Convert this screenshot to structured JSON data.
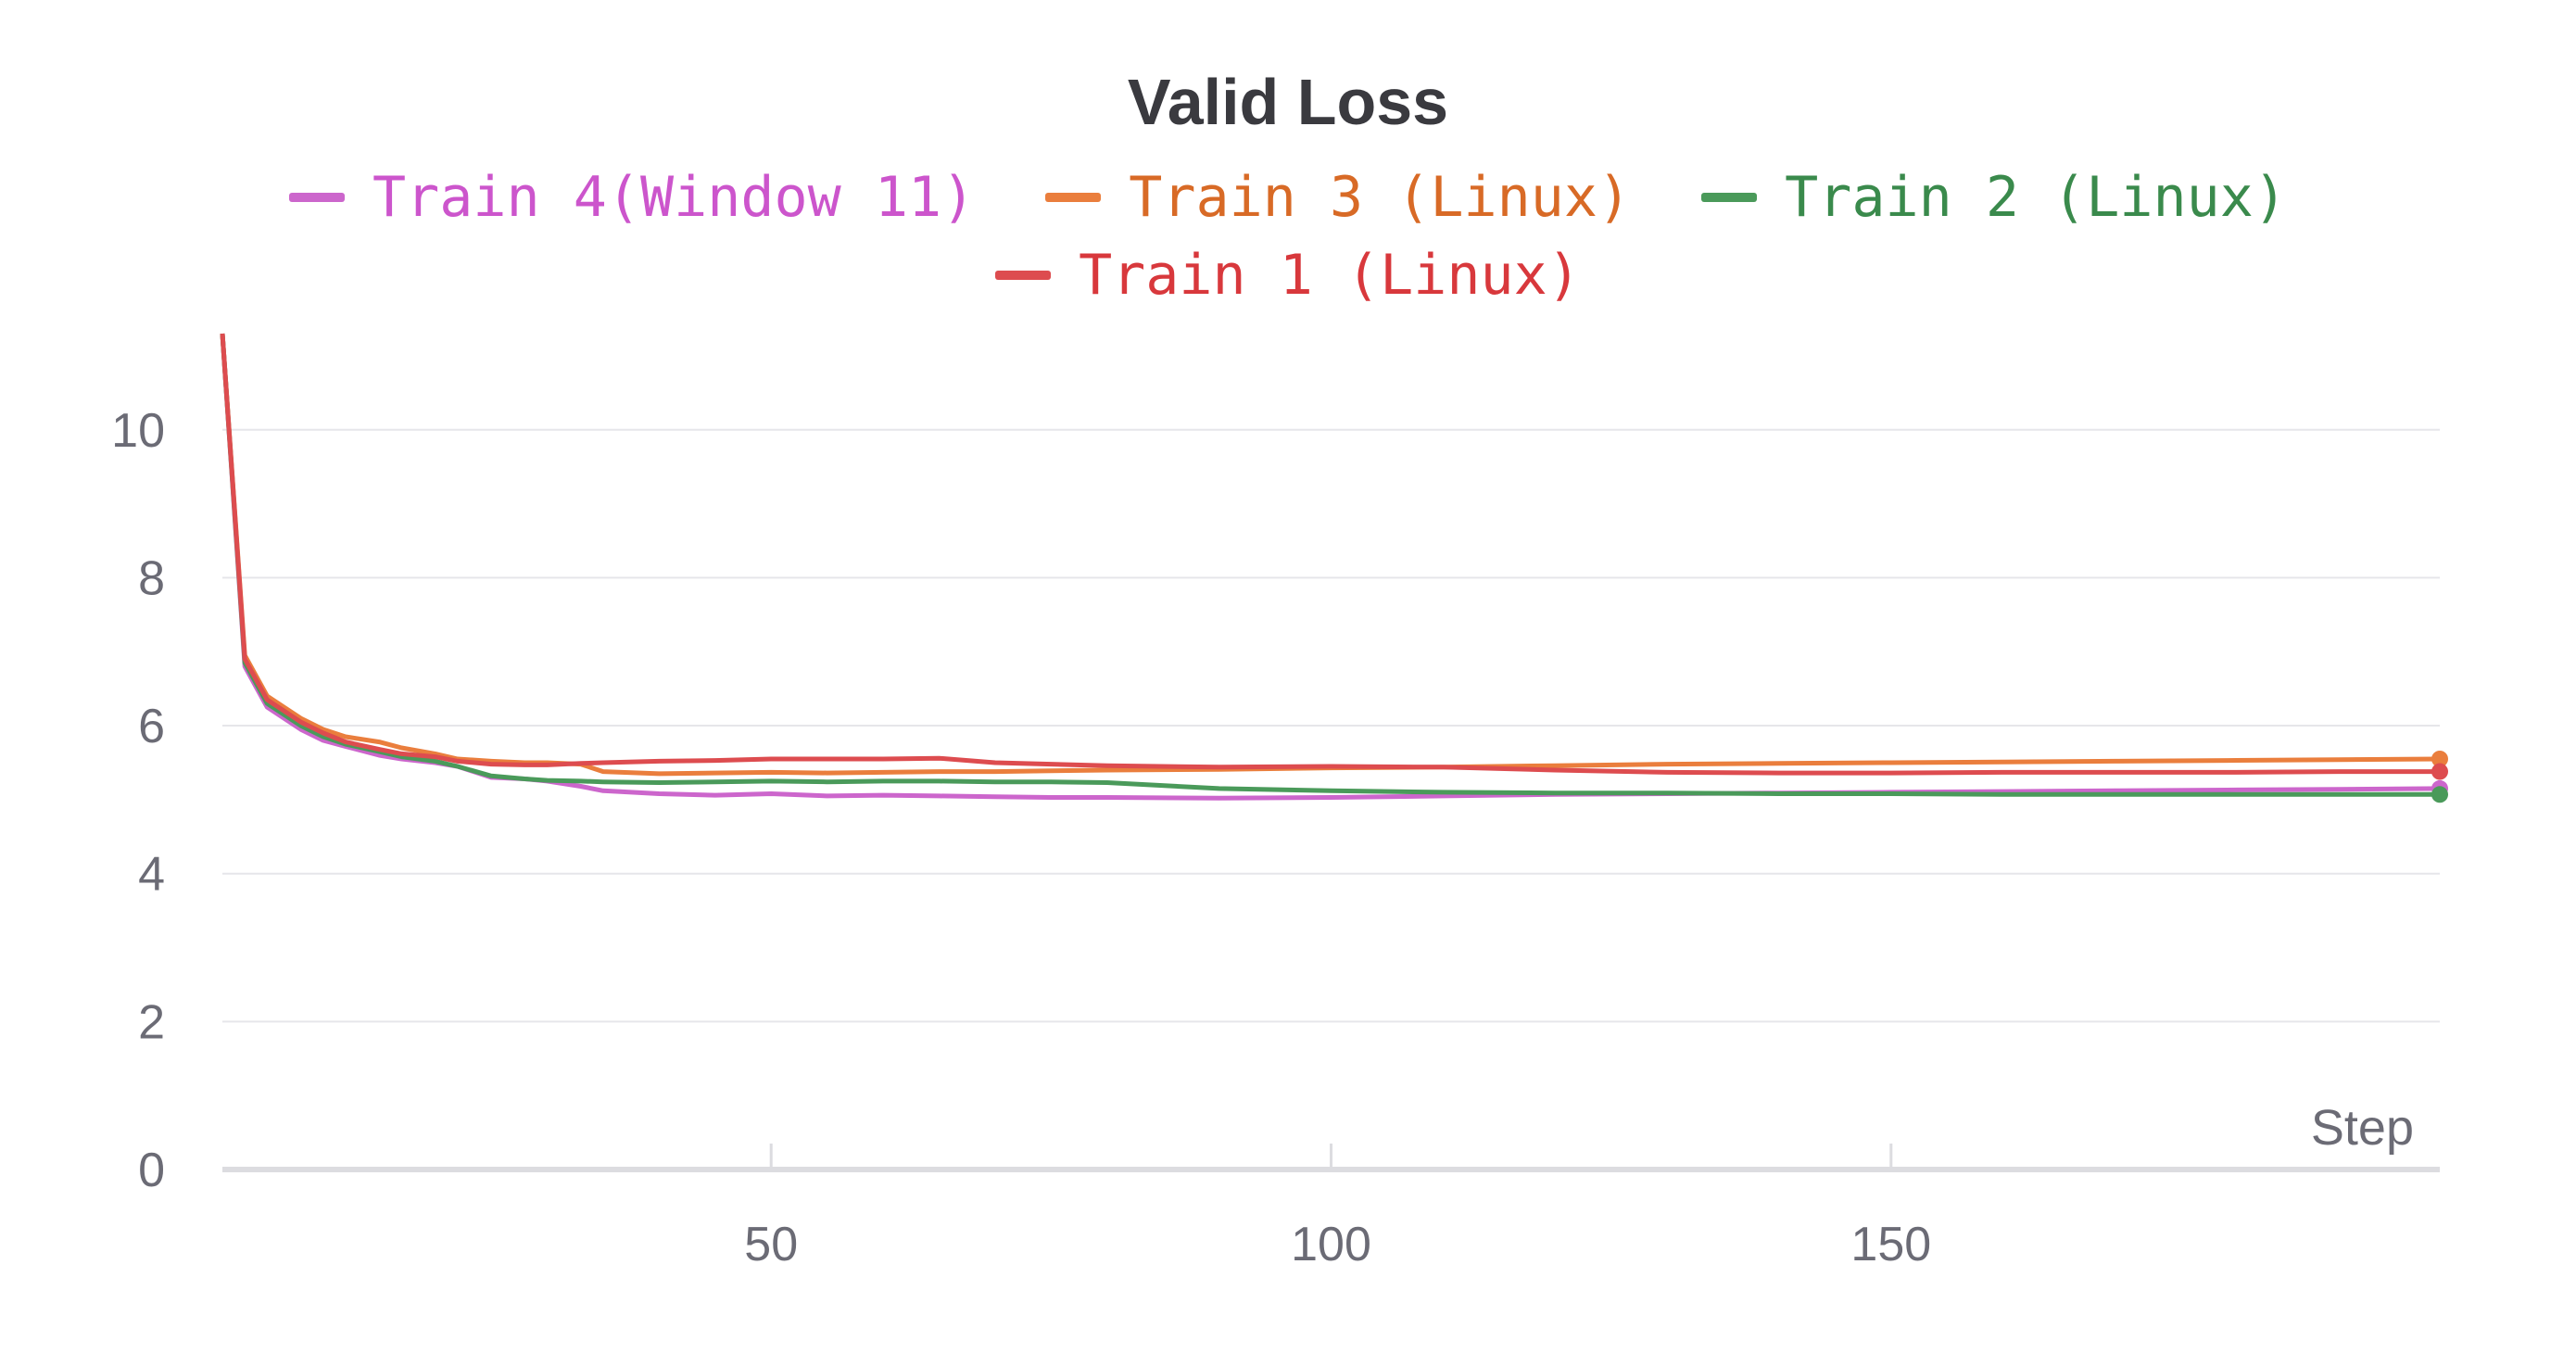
{
  "chart_data": {
    "type": "line",
    "title": "Valid Loss",
    "xlabel": "Step",
    "ylabel": "",
    "xlim": [
      1,
      199
    ],
    "ylim": [
      0,
      11.3
    ],
    "xticks": [
      50,
      100,
      150
    ],
    "yticks": [
      0,
      2,
      4,
      6,
      8,
      10
    ],
    "grid": true,
    "legend_position": "top-center",
    "series": [
      {
        "name": "Train 4(Window 11)",
        "color": "#cc66cc",
        "x": [
          1,
          3,
          5,
          8,
          10,
          12,
          15,
          17,
          20,
          22,
          25,
          28,
          30,
          33,
          35,
          40,
          45,
          50,
          55,
          60,
          65,
          70,
          75,
          80,
          90,
          100,
          110,
          120,
          130,
          140,
          150,
          160,
          170,
          180,
          190,
          199
        ],
        "y": [
          11.3,
          6.8,
          6.25,
          5.95,
          5.8,
          5.72,
          5.6,
          5.55,
          5.5,
          5.45,
          5.3,
          5.28,
          5.25,
          5.18,
          5.12,
          5.08,
          5.06,
          5.08,
          5.05,
          5.06,
          5.05,
          5.04,
          5.03,
          5.03,
          5.02,
          5.03,
          5.05,
          5.07,
          5.08,
          5.09,
          5.1,
          5.11,
          5.12,
          5.13,
          5.14,
          5.15
        ]
      },
      {
        "name": "Train 3 (Linux)",
        "color": "#ea7e3d",
        "x": [
          1,
          3,
          5,
          8,
          10,
          12,
          15,
          17,
          20,
          22,
          25,
          28,
          30,
          33,
          35,
          40,
          45,
          50,
          55,
          60,
          65,
          70,
          75,
          80,
          90,
          100,
          110,
          120,
          130,
          140,
          150,
          160,
          170,
          180,
          190,
          199
        ],
        "y": [
          11.3,
          6.95,
          6.4,
          6.1,
          5.95,
          5.85,
          5.78,
          5.7,
          5.62,
          5.55,
          5.52,
          5.5,
          5.5,
          5.48,
          5.38,
          5.35,
          5.36,
          5.37,
          5.36,
          5.37,
          5.38,
          5.38,
          5.39,
          5.4,
          5.41,
          5.43,
          5.44,
          5.46,
          5.48,
          5.49,
          5.5,
          5.51,
          5.52,
          5.53,
          5.54,
          5.55
        ]
      },
      {
        "name": "Train 2 (Linux)",
        "color": "#4a9a5a",
        "x": [
          1,
          3,
          5,
          8,
          10,
          12,
          15,
          17,
          20,
          22,
          25,
          28,
          30,
          33,
          35,
          40,
          45,
          50,
          55,
          60,
          65,
          70,
          75,
          80,
          90,
          100,
          110,
          120,
          130,
          140,
          150,
          160,
          170,
          180,
          190,
          199
        ],
        "y": [
          11.3,
          6.85,
          6.3,
          6.0,
          5.85,
          5.75,
          5.65,
          5.58,
          5.52,
          5.45,
          5.32,
          5.28,
          5.26,
          5.25,
          5.24,
          5.23,
          5.24,
          5.25,
          5.24,
          5.25,
          5.25,
          5.24,
          5.24,
          5.23,
          5.15,
          5.12,
          5.1,
          5.09,
          5.09,
          5.08,
          5.08,
          5.07,
          5.07,
          5.07,
          5.07,
          5.07
        ]
      },
      {
        "name": "Train 1 (Linux)",
        "color": "#dd4c4f",
        "x": [
          1,
          3,
          5,
          8,
          10,
          12,
          15,
          17,
          20,
          22,
          25,
          28,
          30,
          33,
          35,
          40,
          45,
          50,
          55,
          60,
          65,
          70,
          75,
          80,
          90,
          100,
          110,
          120,
          130,
          140,
          150,
          160,
          170,
          180,
          190,
          199
        ],
        "y": [
          11.3,
          6.9,
          6.35,
          6.05,
          5.9,
          5.78,
          5.68,
          5.62,
          5.58,
          5.52,
          5.48,
          5.47,
          5.47,
          5.49,
          5.5,
          5.52,
          5.53,
          5.55,
          5.55,
          5.55,
          5.56,
          5.5,
          5.48,
          5.46,
          5.44,
          5.45,
          5.44,
          5.4,
          5.37,
          5.36,
          5.36,
          5.37,
          5.37,
          5.37,
          5.38,
          5.38
        ]
      }
    ]
  }
}
